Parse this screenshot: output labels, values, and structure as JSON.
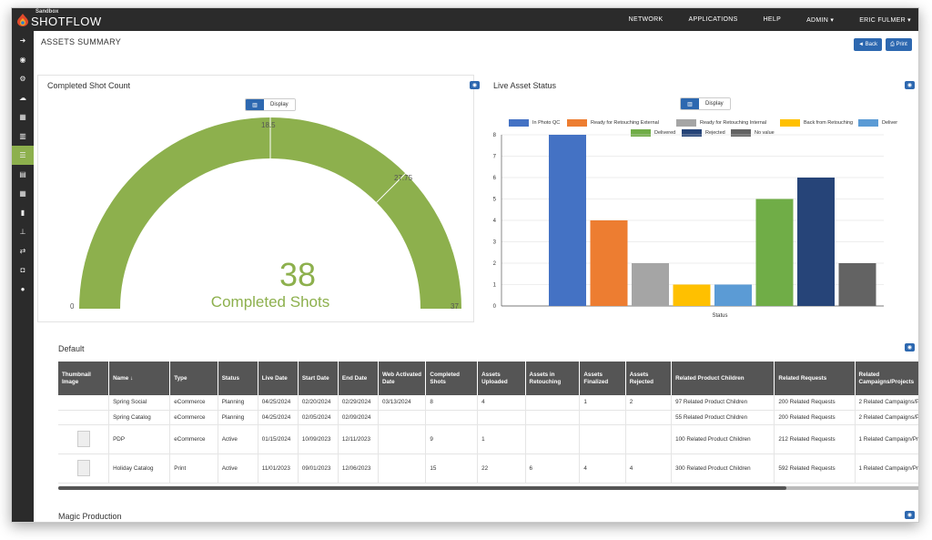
{
  "app": {
    "sandbox_label": "Sandbox",
    "brand": "SHOTFLOW"
  },
  "nav": [
    "NETWORK",
    "APPLICATIONS",
    "HELP",
    "ADMIN ▾",
    "ERIC FULMER ▾"
  ],
  "page": {
    "title": "ASSETS SUMMARY",
    "back_label": "Back",
    "print_label": "Print"
  },
  "sidebar_icons": [
    "arrow-right-icon",
    "dashboard-icon",
    "gears-icon",
    "cloud-upload-icon",
    "calendar-icon",
    "bar-chart-icon",
    "list-icon",
    "database-icon",
    "table-icon",
    "file-icon",
    "sitemap-icon",
    "exchange-icon",
    "camera-icon",
    "users-icon"
  ],
  "gauge": {
    "title": "Completed Shot Count",
    "toggle_label": "Display",
    "min": "0",
    "max": "37",
    "tick_mid": "18.5",
    "tick_3q": "27.75",
    "value": "38",
    "value_label": "Completed Shots",
    "color": "#8db04d"
  },
  "live": {
    "title": "Live Asset Status",
    "toggle_label": "Display"
  },
  "chart_data": {
    "type": "bar",
    "title": "Live Asset Status",
    "xlabel": "Status",
    "ylabel": "",
    "ylim": [
      0,
      8
    ],
    "yticks": [
      "0",
      "1",
      "2",
      "3",
      "4",
      "5",
      "6",
      "7",
      "8"
    ],
    "legend_position": "top",
    "series": [
      {
        "name": "In Photo QC",
        "value": 8,
        "color": "#4472c4"
      },
      {
        "name": "Ready for Retouching External",
        "value": 4,
        "color": "#ed7d31"
      },
      {
        "name": "Ready for Retouching Internal",
        "value": 2,
        "color": "#a5a5a5"
      },
      {
        "name": "Back from Retouching",
        "value": 1,
        "color": "#ffc000"
      },
      {
        "name": "Deliver",
        "value": 1,
        "color": "#5b9bd5"
      },
      {
        "name": "Delivered",
        "value": 5,
        "color": "#70ad47"
      },
      {
        "name": "Rejected",
        "value": 6,
        "color": "#264478"
      },
      {
        "name": "No value",
        "value": 2,
        "color": "#636363"
      }
    ]
  },
  "default_section": {
    "title": "Default"
  },
  "next_section": {
    "title": "Magic Production"
  },
  "table": {
    "headers": [
      "Thumbnail Image",
      "Name ↓",
      "Type",
      "Status",
      "Live Date",
      "Start Date",
      "End Date",
      "Web Activated Date",
      "Completed Shots",
      "Assets Uploaded",
      "Assets in Retouching",
      "Assets Finalized",
      "Assets Rejected",
      "Related Product Children",
      "Related Requests",
      "Related Campaigns/Projects"
    ],
    "rows": [
      [
        "",
        "Spring Social",
        "eCommerce",
        "Planning",
        "04/25/2024",
        "02/20/2024",
        "02/29/2024",
        "03/13/2024",
        "8",
        "4",
        "",
        "1",
        "2",
        "97 Related Product Children",
        "200 Related Requests",
        "2 Related Campaigns/Pr"
      ],
      [
        "",
        "Spring Catalog",
        "eCommerce",
        "Planning",
        "04/25/2024",
        "02/05/2024",
        "02/09/2024",
        "",
        "",
        "",
        "",
        "",
        "",
        "55 Related Product Children",
        "200 Related Requests",
        "2 Related Campaigns/Pr"
      ],
      [
        "thumb",
        "PDP",
        "eCommerce",
        "Active",
        "01/15/2024",
        "10/09/2023",
        "12/11/2023",
        "",
        "9",
        "1",
        "",
        "",
        "",
        "100 Related Product Children",
        "212 Related Requests",
        "1 Related Campaign/Pr"
      ],
      [
        "thumb",
        "Holiday Catalog",
        "Print",
        "Active",
        "11/01/2023",
        "09/01/2023",
        "12/06/2023",
        "",
        "15",
        "22",
        "6",
        "4",
        "4",
        "300 Related Product Children",
        "592 Related Requests",
        "1 Related Campaign/Pr"
      ]
    ]
  }
}
